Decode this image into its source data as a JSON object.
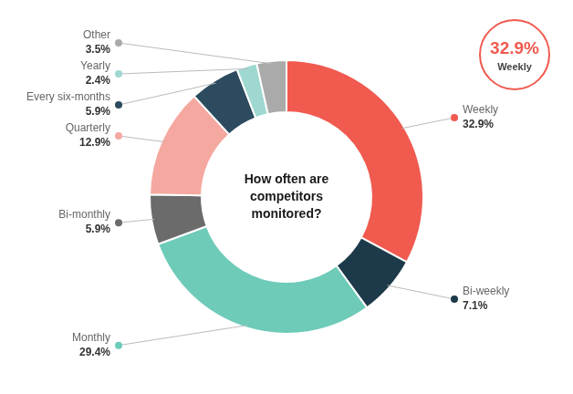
{
  "chart_data": {
    "type": "doughnut",
    "title": "How often are\ncompetitors\nmonitored?",
    "categories": [
      "Weekly",
      "Bi-weekly",
      "Monthly",
      "Bi-monthly",
      "Quarterly",
      "Every six-months",
      "Yearly",
      "Other"
    ],
    "values": [
      32.9,
      7.1,
      29.4,
      5.9,
      12.9,
      5.9,
      2.4,
      3.5
    ],
    "colors": [
      "#F05A4F",
      "#1C3A4A",
      "#6DCBB8",
      "#6B6B6B",
      "#F5A8A0",
      "#2C4B5E",
      "#9ED8D0",
      "#AAAAAA"
    ],
    "data_labels": true,
    "value_labels": [
      "32.9%",
      "7.1%",
      "29.4%",
      "5.9%",
      "12.9%",
      "5.9%",
      "2.4%",
      "3.5%"
    ],
    "annotations": [
      {
        "text": "32.9%",
        "color": "#F05A4F"
      },
      {
        "text": "Weekly"
      }
    ]
  }
}
